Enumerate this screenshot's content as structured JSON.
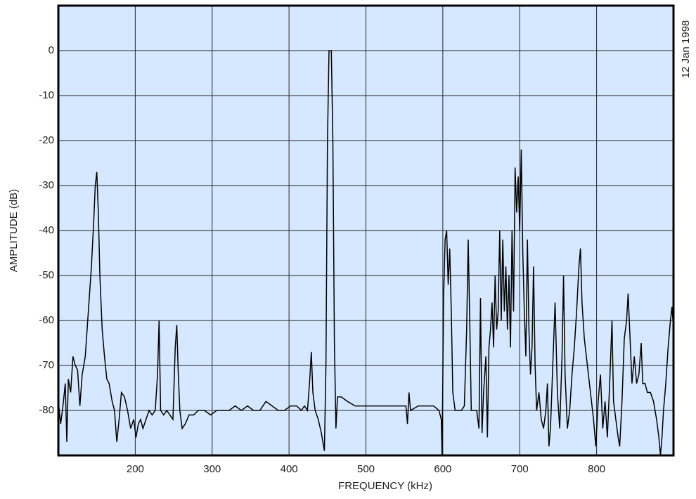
{
  "chart_data": {
    "type": "line",
    "xlabel": "FREQUENCY (kHz)",
    "ylabel": "AMPLITUDE (dB)",
    "annotation": "12 Jan 1998",
    "color": "#000000",
    "grid": true,
    "xlim": [
      100,
      900
    ],
    "xticks": [
      200,
      300,
      400,
      500,
      600,
      700,
      800
    ],
    "ylim": [
      -90,
      10
    ],
    "yticks": [
      0,
      -10,
      -20,
      -30,
      -40,
      -50,
      -60,
      -70,
      -80
    ],
    "x": [
      100,
      103,
      106,
      109,
      111,
      113,
      116,
      119,
      122,
      125,
      128,
      131,
      135,
      139,
      143,
      146,
      148,
      150,
      152,
      154,
      157,
      160,
      163,
      166,
      170,
      173,
      176,
      179,
      182,
      186,
      190,
      194,
      198,
      201,
      204,
      207,
      210,
      214,
      218,
      222,
      226,
      229,
      231,
      233,
      237,
      241,
      245,
      249,
      252,
      254,
      256,
      258,
      261,
      265,
      270,
      276,
      282,
      290,
      298,
      306,
      314,
      322,
      330,
      338,
      346,
      354,
      362,
      370,
      378,
      386,
      394,
      402,
      410,
      416,
      420,
      424,
      427,
      429,
      431,
      434,
      438,
      442,
      446,
      448,
      450,
      452,
      455,
      457,
      459,
      461,
      463,
      468,
      476,
      486,
      496,
      506,
      516,
      526,
      536,
      546,
      552,
      554,
      556,
      558,
      568,
      578,
      588,
      595,
      598,
      599,
      601,
      603,
      605,
      607,
      609,
      611,
      613,
      616,
      620,
      624,
      628,
      631,
      633,
      635,
      637,
      640,
      644,
      647,
      649,
      651,
      653,
      656,
      658,
      660,
      662,
      664,
      666,
      668,
      670,
      672,
      674,
      676,
      678,
      680,
      682,
      684,
      686,
      688,
      690,
      692,
      694,
      696,
      698,
      700,
      702,
      704,
      706,
      708,
      710,
      712,
      714,
      716,
      718,
      720,
      722,
      725,
      728,
      731,
      734,
      736,
      738,
      740,
      743,
      746,
      749,
      752,
      755,
      757,
      759,
      762,
      765,
      768,
      771,
      774,
      777,
      779,
      781,
      784,
      788,
      792,
      796,
      799,
      802,
      805,
      808,
      811,
      814,
      817,
      820,
      822,
      825,
      828,
      830,
      833,
      836,
      839,
      841,
      843,
      846,
      849,
      852,
      855,
      858,
      860,
      863,
      866,
      870,
      874,
      878,
      881,
      883,
      885,
      887,
      890,
      893,
      896,
      898,
      900
    ],
    "values": [
      -78,
      -83,
      -79,
      -74,
      -87,
      -73,
      -76,
      -68,
      -70,
      -71,
      -79,
      -72,
      -68,
      -58,
      -48,
      -38,
      -30,
      -27,
      -36,
      -50,
      -62,
      -68,
      -73,
      -74,
      -78,
      -80,
      -87,
      -82,
      -76,
      -77,
      -80,
      -84,
      -82,
      -86,
      -83,
      -82,
      -84,
      -82,
      -80,
      -81,
      -80,
      -72,
      -60,
      -80,
      -81,
      -80,
      -81,
      -82,
      -66,
      -61,
      -72,
      -80,
      -84,
      -83,
      -81,
      -81,
      -80,
      -80,
      -81,
      -80,
      -80,
      -80,
      -79,
      -80,
      -79,
      -80,
      -80,
      -78,
      -79,
      -80,
      -80,
      -79,
      -79,
      -80,
      -79,
      -80,
      -73,
      -67,
      -76,
      -80,
      -82,
      -85,
      -89,
      -70,
      -20,
      0,
      0,
      -20,
      -65,
      -84,
      -77,
      -77,
      -78,
      -79,
      -79,
      -79,
      -79,
      -79,
      -79,
      -79,
      -79,
      -83,
      -76,
      -80,
      -79,
      -79,
      -79,
      -80,
      -82,
      -90,
      -55,
      -42,
      -40,
      -52,
      -44,
      -58,
      -76,
      -80,
      -80,
      -80,
      -79,
      -62,
      -42,
      -60,
      -80,
      -80,
      -80,
      -84,
      -55,
      -85,
      -76,
      -68,
      -86,
      -66,
      -62,
      -56,
      -66,
      -50,
      -62,
      -58,
      -40,
      -60,
      -42,
      -58,
      -48,
      -62,
      -50,
      -66,
      -40,
      -58,
      -26,
      -36,
      -28,
      -40,
      -22,
      -45,
      -58,
      -68,
      -42,
      -62,
      -72,
      -66,
      -48,
      -70,
      -80,
      -76,
      -82,
      -84,
      -80,
      -74,
      -88,
      -84,
      -70,
      -56,
      -76,
      -84,
      -68,
      -50,
      -72,
      -84,
      -80,
      -72,
      -66,
      -58,
      -48,
      -44,
      -56,
      -64,
      -70,
      -76,
      -82,
      -88,
      -78,
      -72,
      -84,
      -78,
      -86,
      -74,
      -60,
      -78,
      -82,
      -86,
      -88,
      -78,
      -64,
      -60,
      -54,
      -62,
      -74,
      -68,
      -74,
      -72,
      -65,
      -74,
      -74,
      -76,
      -76,
      -78,
      -82,
      -86,
      -90,
      -86,
      -80,
      -74,
      -66,
      -60,
      -57,
      -62
    ]
  }
}
